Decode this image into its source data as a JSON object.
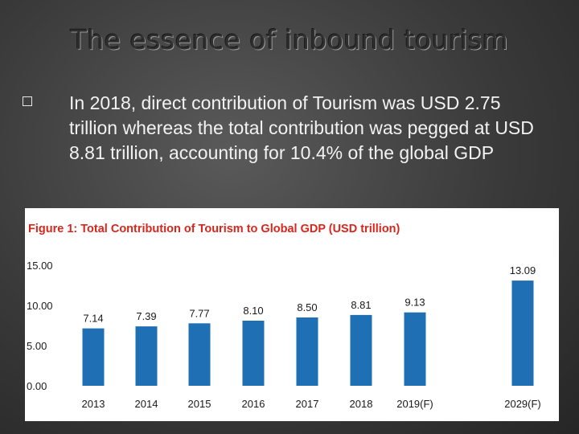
{
  "slide": {
    "title": "The essence of inbound tourism",
    "bullet_text": "In 2018, direct contribution of Tourism was USD 2.75 trillion whereas the total contribution was pegged at USD 8.81 trillion, accounting for 10.4% of the global GDP"
  },
  "chart_data": {
    "type": "bar",
    "title": "Figure 1: Total Contribution of Tourism to Global GDP (USD trillion)",
    "categories": [
      "2013",
      "2014",
      "2015",
      "2016",
      "2017",
      "2018",
      "2019(F)",
      "2029(F)"
    ],
    "values": [
      7.14,
      7.39,
      7.77,
      8.1,
      8.5,
      8.81,
      9.13,
      13.09
    ],
    "value_labels": [
      "7.14",
      "7.39",
      "7.77",
      "8.10",
      "8.50",
      "8.81",
      "9.13",
      "13.09"
    ],
    "ylim": [
      0,
      15
    ],
    "yticks": [
      0,
      5,
      10,
      15
    ],
    "ytick_labels": [
      "0.00",
      "5.00",
      "10.00",
      "15.00"
    ],
    "bar_color": "#1f6fb4",
    "grid": false,
    "xlabel": "",
    "ylabel": ""
  }
}
